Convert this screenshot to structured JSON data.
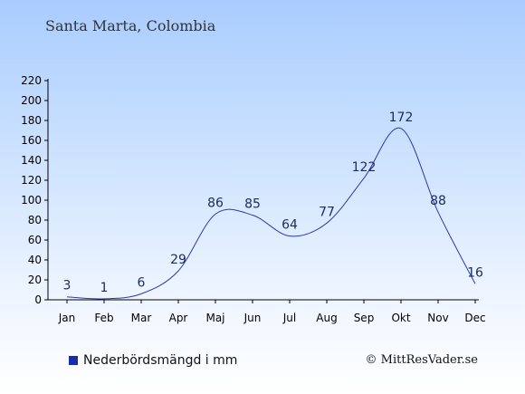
{
  "location": "Santa Marta, Colombia",
  "legend_label": "Nederbördsmängd i mm",
  "copyright": "© MittResVader.se",
  "colors": {
    "line": "#2a3ab0",
    "swatch": "#1a2aa8",
    "axis": "#000000"
  },
  "chart_data": {
    "type": "line",
    "categories": [
      "Jan",
      "Feb",
      "Mar",
      "Apr",
      "Maj",
      "Jun",
      "Jul",
      "Aug",
      "Sep",
      "Okt",
      "Nov",
      "Dec"
    ],
    "series": [
      {
        "name": "Nederbördsmängd i mm",
        "values": [
          3,
          1,
          6,
          29,
          86,
          85,
          64,
          77,
          122,
          172,
          88,
          16
        ]
      }
    ],
    "ylim": [
      0,
      220
    ],
    "yticks": [
      0,
      20,
      40,
      60,
      80,
      100,
      120,
      140,
      160,
      180,
      200,
      220
    ],
    "title": "",
    "xlabel": "",
    "ylabel": "",
    "grid": false,
    "legend_position": "bottom-left"
  }
}
